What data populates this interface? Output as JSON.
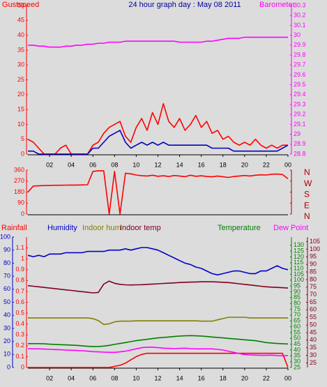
{
  "chart_data": [
    {
      "type": "line",
      "title": "24 hour graph day : May 08 2011",
      "y_label": "Gustspeed",
      "y2_label": "Barometer",
      "title_color": "#0000a0",
      "y_color": "#ff0000",
      "y2_color": "#ff00ff",
      "x": [
        0,
        0.5,
        1,
        1.5,
        2,
        2.5,
        3,
        3.5,
        4,
        4.5,
        5,
        5.5,
        6,
        6.5,
        7,
        7.5,
        8,
        8.5,
        9,
        9.5,
        10,
        10.5,
        11,
        11.5,
        12,
        12.5,
        13,
        13.5,
        14,
        14.5,
        15,
        15.5,
        16,
        16.5,
        17,
        17.5,
        18,
        18.5,
        19,
        19.5,
        20,
        20.5,
        21,
        21.5,
        22,
        22.5,
        23,
        23.5,
        24
      ],
      "xlim": [
        0,
        24
      ],
      "xticks": [
        {
          "value": 2,
          "label": "02"
        },
        {
          "value": 4,
          "label": "04"
        },
        {
          "value": 6,
          "label": "06"
        },
        {
          "value": 8,
          "label": "08"
        },
        10,
        12,
        14,
        16,
        18,
        20,
        22,
        {
          "value": 24,
          "label": "00"
        }
      ],
      "ylim": [
        0,
        50
      ],
      "yticks": [
        0,
        5,
        10,
        15,
        20,
        25,
        30,
        35,
        40,
        45,
        50
      ],
      "y2lim": [
        28.8,
        30.3
      ],
      "y2ticks": [
        28.8,
        28.9,
        29,
        29.1,
        29.2,
        29.3,
        29.4,
        29.5,
        29.6,
        29.7,
        29.8,
        29.9,
        30,
        30.1,
        30.2,
        30.3
      ],
      "series": [
        {
          "color": "#ff0000",
          "values": [
            5,
            4,
            2,
            0,
            0,
            0,
            2,
            3,
            0,
            0,
            0,
            0,
            3,
            4,
            7,
            9,
            10,
            11,
            6,
            4,
            9,
            12,
            8,
            14,
            10,
            17,
            11,
            9,
            12,
            8,
            10,
            13,
            9,
            11,
            7,
            8,
            5,
            6,
            4,
            3,
            4,
            3,
            5,
            3,
            2,
            3,
            2,
            3,
            3
          ]
        },
        {
          "color": "#0000c0",
          "values": [
            1,
            1,
            0,
            0,
            0,
            0,
            0,
            0,
            0,
            0,
            0,
            0,
            2,
            2,
            4,
            6,
            7,
            8,
            4,
            2,
            3,
            4,
            3,
            4,
            3,
            4,
            3,
            3,
            3,
            3,
            3,
            3,
            3,
            3,
            2,
            2,
            2,
            2,
            1,
            1,
            1,
            1,
            1,
            1,
            1,
            1,
            1,
            2,
            3
          ]
        },
        {
          "color": "#ff00ff",
          "axis": "y2",
          "values": [
            29.9,
            29.9,
            29.89,
            29.89,
            29.88,
            29.88,
            29.88,
            29.89,
            29.89,
            29.9,
            29.9,
            29.91,
            29.91,
            29.92,
            29.92,
            29.93,
            29.93,
            29.93,
            29.94,
            29.94,
            29.94,
            29.94,
            29.94,
            29.94,
            29.94,
            29.94,
            29.94,
            29.94,
            29.93,
            29.93,
            29.93,
            29.93,
            29.93,
            29.94,
            29.94,
            29.95,
            29.96,
            29.97,
            29.97,
            29.97,
            29.98,
            29.98,
            29.98,
            29.98,
            29.98,
            29.98,
            29.98,
            29.98,
            29.98
          ]
        }
      ]
    },
    {
      "type": "line",
      "y_color": "#ff0000",
      "y2_color": "#b00000",
      "x": [
        0,
        0.5,
        1,
        1.5,
        2,
        2.5,
        3,
        3.5,
        4,
        4.5,
        5,
        5.5,
        6,
        6.5,
        7,
        7.5,
        8,
        8.5,
        9,
        9.5,
        10,
        10.5,
        11,
        11.5,
        12,
        12.5,
        13,
        13.5,
        14,
        14.5,
        15,
        15.5,
        16,
        16.5,
        17,
        17.5,
        18,
        18.5,
        19,
        19.5,
        20,
        20.5,
        21,
        21.5,
        22,
        22.5,
        23,
        23.5,
        24
      ],
      "xlim": [
        0,
        24
      ],
      "ylim": [
        0,
        360
      ],
      "yticks": [
        0,
        90,
        180,
        270,
        360
      ],
      "y2lim": [
        0,
        360
      ],
      "y2ticks": [
        {
          "value": 0,
          "label": "N"
        },
        {
          "value": 90,
          "label": "E"
        },
        {
          "value": 180,
          "label": "S"
        },
        {
          "value": 270,
          "label": "W"
        },
        {
          "value": 360,
          "label": "N"
        }
      ],
      "series": [
        {
          "color": "#ff0000",
          "values": [
            180,
            230,
            232,
            234,
            235,
            236,
            236,
            237,
            238,
            238,
            239,
            240,
            350,
            355,
            355,
            0,
            350,
            0,
            335,
            330,
            320,
            315,
            312,
            318,
            310,
            314,
            308,
            316,
            312,
            306,
            318,
            310,
            314,
            308,
            305,
            312,
            306,
            300,
            308,
            312,
            316,
            312,
            318,
            322,
            320,
            326,
            328,
            324,
            290
          ]
        }
      ]
    },
    {
      "type": "line",
      "x": [
        0,
        0.5,
        1,
        1.5,
        2,
        2.5,
        3,
        3.5,
        4,
        4.5,
        5,
        5.5,
        6,
        6.5,
        7,
        7.5,
        8,
        8.5,
        9,
        9.5,
        10,
        10.5,
        11,
        11.5,
        12,
        12.5,
        13,
        13.5,
        14,
        14.5,
        15,
        15.5,
        16,
        16.5,
        17,
        17.5,
        18,
        18.5,
        19,
        19.5,
        20,
        20.5,
        21,
        21.5,
        22,
        22.5,
        23,
        23.5,
        24
      ],
      "xlim": [
        0,
        24
      ],
      "xticks": [
        {
          "value": 2,
          "label": "02"
        },
        {
          "value": 4,
          "label": "04"
        },
        {
          "value": 6,
          "label": "06"
        },
        {
          "value": 8,
          "label": "08"
        },
        10,
        12,
        14,
        16,
        18,
        20,
        22,
        {
          "value": 24,
          "label": "00"
        }
      ],
      "axes": [
        {
          "side": "left",
          "color": "#ff0000",
          "lim": [
            0,
            1.2
          ],
          "ticks": [
            0,
            0.1,
            0.2,
            0.3,
            0.4,
            0.5,
            0.6,
            0.7,
            0.8,
            0.9,
            1,
            1.1
          ]
        },
        {
          "side": "left",
          "color": "#0000cc",
          "lim": [
            0,
            100
          ],
          "ticks": [
            0,
            10,
            20,
            30,
            40,
            50,
            60,
            70,
            80,
            90,
            100
          ]
        },
        {
          "side": "right",
          "color": "#008000",
          "lim": [
            25,
            137
          ],
          "ticks": [
            25,
            30,
            35,
            40,
            45,
            50,
            55,
            60,
            65,
            70,
            75,
            80,
            85,
            90,
            95,
            100,
            105,
            110,
            115,
            120,
            125,
            130
          ]
        },
        {
          "side": "right",
          "color": "#800020",
          "lim": [
            22,
            108
          ],
          "ticks": [
            25,
            30,
            35,
            40,
            45,
            50,
            55,
            60,
            65,
            70,
            75,
            80,
            85,
            90,
            95,
            100,
            105
          ]
        }
      ],
      "series": [
        {
          "name": "Rainfall",
          "color": "#ff0000",
          "axis": 0,
          "values": [
            0,
            0,
            0,
            0,
            0,
            0,
            0,
            0,
            0,
            0,
            0,
            0,
            0,
            0,
            0,
            0,
            0.01,
            0.02,
            0.04,
            0.07,
            0.1,
            0.12,
            0.13,
            0.13,
            0.13,
            0.13,
            0.13,
            0.13,
            0.13,
            0.13,
            0.13,
            0.13,
            0.13,
            0.13,
            0.13,
            0.13,
            0.13,
            0.13,
            0.13,
            0.13,
            0.13,
            0.13,
            0.13,
            0.13,
            0.13,
            0.13,
            0.13,
            0.13,
            0
          ]
        },
        {
          "name": "Humidity",
          "color": "#0000cc",
          "axis": 1,
          "values": [
            86,
            85,
            86,
            85,
            87,
            87,
            87,
            88,
            88,
            88,
            88,
            89,
            89,
            89,
            89,
            90,
            90,
            90,
            91,
            90,
            91,
            92,
            92,
            91,
            90,
            88,
            86,
            84,
            82,
            80,
            79,
            77,
            76,
            74,
            72,
            71,
            72,
            73,
            74,
            74,
            73,
            72,
            72,
            74,
            74,
            76,
            78,
            76,
            75
          ]
        },
        {
          "name": "Indoor hum",
          "color": "#808000",
          "axis": 1,
          "values": [
            38,
            38,
            38,
            38,
            38,
            38,
            38,
            38,
            38,
            38,
            38,
            38,
            37.5,
            36,
            33,
            33.5,
            35,
            35.5,
            35.5,
            35.5,
            35.8,
            35.8,
            35.8,
            35.8,
            35.8,
            35.8,
            35.8,
            35.8,
            35.8,
            35.8,
            35.8,
            35.8,
            35.5,
            35.5,
            35.5,
            36.5,
            37.5,
            38.5,
            38.5,
            38.5,
            38.5,
            38,
            38,
            38,
            38,
            38,
            38,
            38,
            38
          ]
        },
        {
          "name": "Indoor temp",
          "color": "#800020",
          "axis": 3,
          "values": [
            76,
            75.6,
            75.2,
            74.8,
            74.4,
            74,
            73.6,
            73.2,
            72.8,
            72.4,
            72,
            71.6,
            71.2,
            71.5,
            77,
            79,
            77.5,
            76.8,
            76.5,
            76.4,
            76.5,
            76.6,
            76.8,
            77,
            77.2,
            77.4,
            77.6,
            77.8,
            78,
            78.2,
            78.3,
            78.4,
            78.5,
            78.5,
            78.5,
            78.4,
            78.2,
            78,
            77.6,
            77.2,
            76.8,
            76.4,
            76,
            75.6,
            75.2,
            75,
            74.8,
            74.6,
            74.4
          ]
        },
        {
          "name": "Temperature",
          "color": "#008000",
          "axis": 2,
          "values": [
            45.5,
            45.5,
            45.5,
            45.3,
            45,
            44.8,
            44.6,
            44.4,
            44.2,
            44,
            43.6,
            43.2,
            43,
            43,
            43.4,
            44,
            44.8,
            45.6,
            46.4,
            47.2,
            48,
            48.6,
            49.2,
            49.8,
            50.4,
            50.8,
            51.2,
            51.6,
            52,
            52.2,
            52.4,
            52.2,
            52,
            51.6,
            51.2,
            50.8,
            50.4,
            50,
            49.6,
            49.2,
            48.8,
            48.4,
            48,
            47.2,
            46.4,
            46,
            45.6,
            45.4,
            45.2
          ]
        },
        {
          "name": "Dew Point",
          "color": "#ff00ff",
          "axis": 2,
          "values": [
            41.2,
            41,
            41,
            40.8,
            40.6,
            40.4,
            40.2,
            40,
            39.8,
            39.6,
            39.4,
            39,
            38.6,
            38.4,
            38.2,
            38,
            38,
            38.4,
            39,
            40,
            41,
            42,
            42.4,
            42.4,
            42,
            41.6,
            41.4,
            41.2,
            41.4,
            41.6,
            41.2,
            41,
            41,
            41,
            41,
            40.6,
            40,
            39,
            38,
            37,
            36,
            35.8,
            35.6,
            35.4,
            35.4,
            35.6,
            35.2,
            35,
            35.2
          ]
        }
      ]
    }
  ]
}
